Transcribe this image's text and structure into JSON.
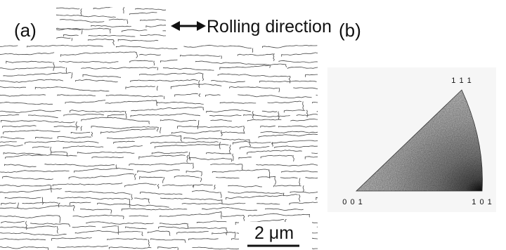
{
  "labels": {
    "panel_a": "(a)",
    "rolling_direction": "Rolling direction",
    "panel_b": "(b)",
    "scale_bar": "2 μm"
  },
  "pole_figure": {
    "corners": {
      "top": "1 1 1",
      "left": "0 0 1",
      "right": "1 0 1"
    }
  }
}
